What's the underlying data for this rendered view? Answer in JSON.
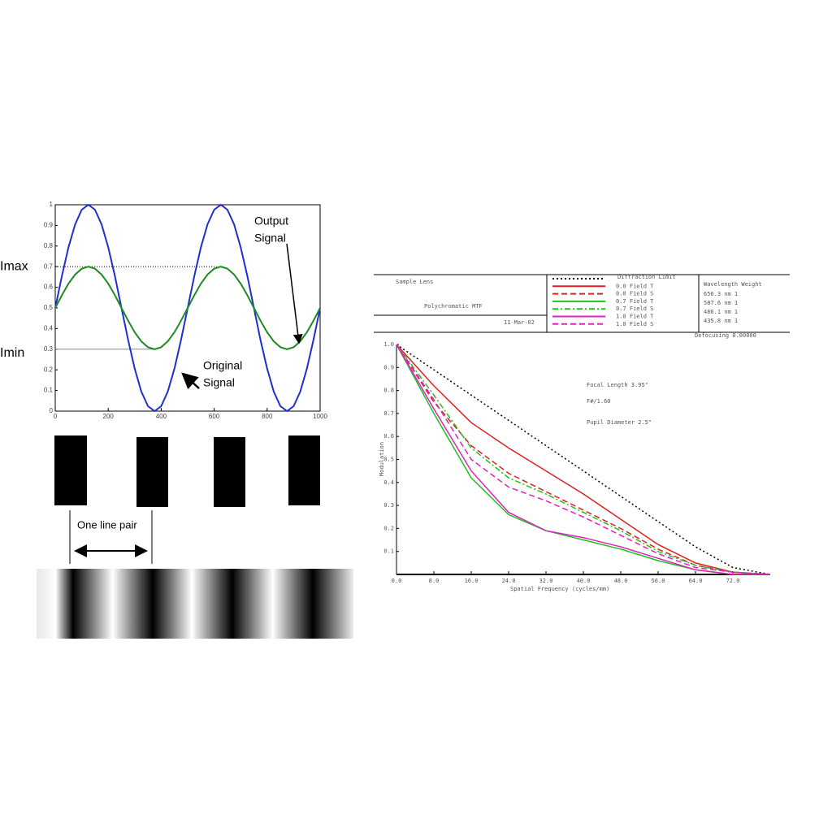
{
  "chart_data": [
    {
      "type": "line",
      "x": [
        0,
        25,
        50,
        75,
        100,
        125,
        150,
        175,
        200,
        225,
        250,
        275,
        300,
        325,
        350,
        375,
        400,
        425,
        450,
        475,
        500,
        525,
        550,
        575,
        600,
        625,
        650,
        675,
        700,
        725,
        750,
        775,
        800,
        825,
        850,
        875,
        900,
        925,
        950,
        975,
        1000
      ],
      "series": [
        {
          "name": "Original Signal",
          "color": "#1f2fd0",
          "values": [
            0.5,
            0.655,
            0.794,
            0.905,
            0.976,
            1,
            0.976,
            0.905,
            0.794,
            0.655,
            0.5,
            0.345,
            0.206,
            0.095,
            0.024,
            0,
            0.024,
            0.095,
            0.206,
            0.345,
            0.5,
            0.655,
            0.794,
            0.905,
            0.976,
            1,
            0.976,
            0.905,
            0.794,
            0.655,
            0.5,
            0.345,
            0.206,
            0.095,
            0.024,
            0,
            0.024,
            0.095,
            0.206,
            0.345,
            0.5
          ]
        },
        {
          "name": "Output Signal",
          "color": "#1f8a1f",
          "values": [
            0.5,
            0.562,
            0.618,
            0.662,
            0.69,
            0.7,
            0.69,
            0.662,
            0.618,
            0.562,
            0.5,
            0.438,
            0.382,
            0.338,
            0.31,
            0.3,
            0.31,
            0.338,
            0.382,
            0.438,
            0.5,
            0.562,
            0.618,
            0.662,
            0.69,
            0.7,
            0.69,
            0.662,
            0.618,
            0.562,
            0.5,
            0.438,
            0.382,
            0.338,
            0.31,
            0.3,
            0.31,
            0.338,
            0.382,
            0.438,
            0.5
          ]
        }
      ],
      "xlim": [
        0,
        1000
      ],
      "xticks": [
        0,
        200,
        400,
        600,
        800,
        1000
      ],
      "ylim": [
        0,
        1
      ],
      "yticks": [
        0,
        0.1,
        0.2,
        0.3,
        0.4,
        0.5,
        0.6,
        0.7,
        0.8,
        0.9,
        1
      ],
      "reference_lines": [
        {
          "label": "Imax",
          "value": 0.7
        },
        {
          "label": "Imin",
          "value": 0.3
        }
      ],
      "annotations": [
        {
          "lines": [
            "Output",
            "Signal"
          ]
        },
        {
          "lines": [
            "Original",
            "Signal"
          ]
        }
      ],
      "line_pair_label": "One line pair"
    },
    {
      "type": "line",
      "title": "Sample Lens",
      "subtitle": "Polychromatic MTF",
      "date": "11-Mar-02",
      "legend_title": "Diffraction Limit",
      "wavelength_header": "Wavelength Weight",
      "wavelengths": [
        "656.3 nm   1",
        "587.6 nm   1",
        "486.1 nm   1",
        "435.8 nm   1"
      ],
      "defocus": "Defocusing   0.00000",
      "notes": [
        "Focal Length 3.95\"",
        "F#/1.60",
        "Pupil Diameter 2.5\""
      ],
      "xlabel": "Spatial Frequency (cycles/mm)",
      "ylabel": "Modulation",
      "x": [
        0,
        8,
        16,
        24,
        32,
        40,
        48,
        56,
        64,
        72,
        80
      ],
      "series": [
        {
          "name": "Diffraction limit",
          "color": "#000000",
          "style": "dotted",
          "values": [
            1,
            0.89,
            0.78,
            0.67,
            0.56,
            0.45,
            0.34,
            0.23,
            0.12,
            0.03,
            0
          ]
        },
        {
          "name": "0.0 Field T",
          "color": "#e02020",
          "style": "solid",
          "values": [
            1,
            0.82,
            0.66,
            0.55,
            0.45,
            0.35,
            0.24,
            0.13,
            0.05,
            0.01,
            0
          ]
        },
        {
          "name": "0.0 Field S",
          "color": "#e02020",
          "style": "dashed",
          "values": [
            1,
            0.75,
            0.56,
            0.44,
            0.36,
            0.28,
            0.2,
            0.11,
            0.04,
            0.01,
            0
          ]
        },
        {
          "name": "0.7 Field T",
          "color": "#20c020",
          "style": "solid",
          "values": [
            1,
            0.7,
            0.42,
            0.26,
            0.19,
            0.15,
            0.11,
            0.06,
            0.02,
            0,
            0
          ]
        },
        {
          "name": "0.7 Field S",
          "color": "#20c020",
          "style": "dashdot",
          "values": [
            1,
            0.78,
            0.55,
            0.42,
            0.35,
            0.27,
            0.19,
            0.1,
            0.04,
            0.01,
            0
          ]
        },
        {
          "name": "1.0 Field T",
          "color": "#e020c0",
          "style": "solid",
          "values": [
            1,
            0.72,
            0.45,
            0.27,
            0.19,
            0.16,
            0.12,
            0.07,
            0.02,
            0,
            0
          ]
        },
        {
          "name": "1.0 Field S",
          "color": "#e020c0",
          "style": "dashed",
          "values": [
            1,
            0.76,
            0.5,
            0.38,
            0.32,
            0.25,
            0.17,
            0.09,
            0.03,
            0.01,
            0
          ]
        }
      ],
      "xlim": [
        0,
        80
      ],
      "xticks": [
        {
          "value": 0,
          "label": "0.0"
        },
        {
          "value": 8,
          "label": "8.0"
        },
        {
          "value": 16,
          "label": "16.0"
        },
        {
          "value": 24,
          "label": "24.0"
        },
        {
          "value": 32,
          "label": "32.0"
        },
        {
          "value": 40,
          "label": "40.0"
        },
        {
          "value": 48,
          "label": "48.0"
        },
        {
          "value": 56,
          "label": "56.0"
        },
        {
          "value": 64,
          "label": "64.0"
        },
        {
          "value": 72,
          "label": "72.0"
        }
      ],
      "ylim": [
        0,
        1
      ],
      "yticks": [
        0.1,
        0.2,
        0.3,
        0.4,
        0.5,
        0.6,
        0.7,
        0.8,
        0.9,
        {
          "value": 1,
          "label": "1.0"
        }
      ]
    }
  ]
}
